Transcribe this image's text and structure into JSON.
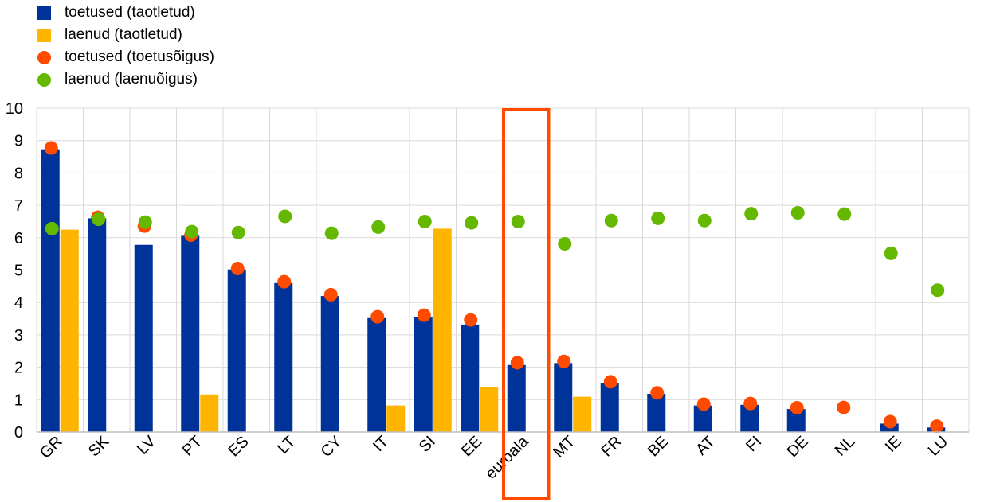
{
  "chart_data": {
    "type": "bar",
    "title": "",
    "xlabel": "",
    "ylabel": "",
    "ylim": [
      0,
      10
    ],
    "yticks": [
      0,
      1,
      2,
      3,
      4,
      5,
      6,
      7,
      8,
      9,
      10
    ],
    "grid": true,
    "legend_position": "top-left",
    "categories": [
      "GR",
      "SK",
      "LV",
      "PT",
      "ES",
      "LT",
      "CY",
      "IT",
      "SI",
      "EE",
      "euroala",
      "MT",
      "FR",
      "BE",
      "AT",
      "FI",
      "DE",
      "NL",
      "IE",
      "LU"
    ],
    "highlighted_category": "euroala",
    "series": [
      {
        "name": "toetused (taotletud)",
        "kind": "bar",
        "color": "#003399",
        "values": [
          8.73,
          6.6,
          5.78,
          6.06,
          5.02,
          4.6,
          4.2,
          3.52,
          3.55,
          3.32,
          2.07,
          2.13,
          1.51,
          1.18,
          0.82,
          0.84,
          0.71,
          null,
          0.26,
          0.14
        ]
      },
      {
        "name": "laenud (taotletud)",
        "kind": "bar",
        "color": "#FFB400",
        "values": [
          6.25,
          null,
          null,
          1.16,
          null,
          null,
          null,
          0.82,
          6.28,
          1.4,
          null,
          1.09,
          null,
          null,
          null,
          null,
          null,
          null,
          null,
          null
        ]
      },
      {
        "name": "toetused (toetusõigus)",
        "kind": "dot",
        "color": "#FF4B00",
        "values": [
          8.77,
          6.63,
          6.36,
          6.08,
          5.05,
          4.64,
          4.24,
          3.56,
          3.61,
          3.46,
          2.14,
          2.18,
          1.55,
          1.21,
          0.86,
          0.88,
          0.75,
          0.76,
          0.32,
          0.18
        ]
      },
      {
        "name": "laenud (laenuõigus)",
        "kind": "dot",
        "color": "#65B800",
        "values": [
          6.28,
          6.57,
          6.48,
          6.19,
          6.16,
          6.66,
          6.14,
          6.33,
          6.5,
          6.46,
          6.5,
          5.81,
          6.53,
          6.6,
          6.53,
          6.74,
          6.77,
          6.73,
          5.52,
          4.38
        ]
      }
    ]
  },
  "colors": {
    "highlight_box": "#FF4B00",
    "gridline": "#D9D9D9",
    "axis": "#BFBFBF"
  }
}
